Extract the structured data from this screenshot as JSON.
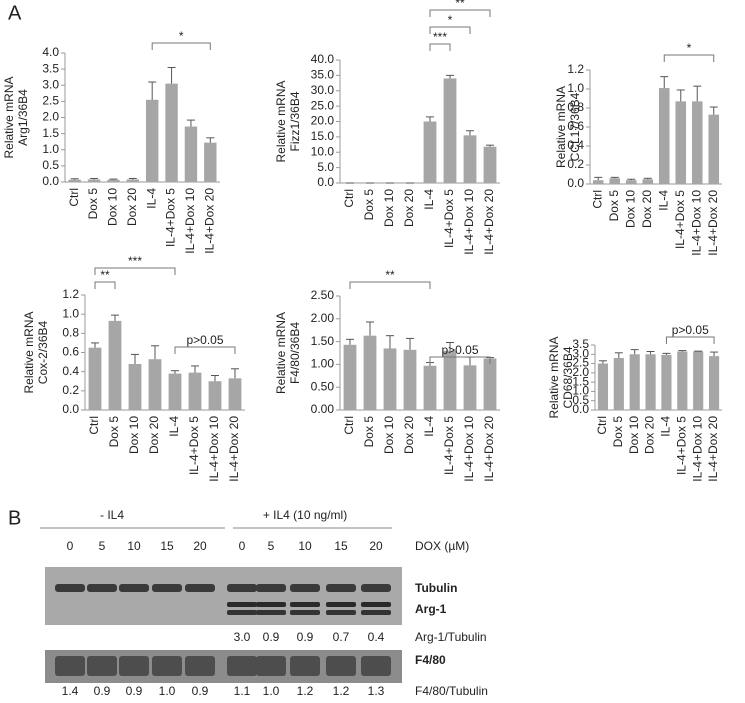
{
  "panel_label": "A",
  "chart_data": [
    {
      "type": "bar",
      "ylabel": [
        "Relative mRNA",
        "Arg1/36B4"
      ],
      "color": "#a6a6a6",
      "categories": [
        "Ctrl",
        "Dox 5",
        "Dox 10",
        "Dox 20",
        "IL-4",
        "IL-4+Dox 5",
        "IL-4+Dox 10",
        "IL-4+Dox 20"
      ],
      "values": [
        0.07,
        0.08,
        0.07,
        0.08,
        2.55,
        3.05,
        1.72,
        1.22
      ],
      "errors": [
        0.03,
        0.03,
        0.02,
        0.03,
        0.55,
        0.5,
        0.2,
        0.15
      ],
      "ylim": [
        0,
        4
      ],
      "yticks": [
        {
          "value": 0,
          "label": "0.0"
        },
        0.5,
        {
          "value": 1,
          "label": "1.0"
        },
        1.5,
        {
          "value": 2,
          "label": "2.0"
        },
        2.5,
        {
          "value": 3,
          "label": "3.0"
        },
        3.5,
        {
          "value": 4,
          "label": "4.0"
        }
      ],
      "annotations": [
        "*"
      ]
    },
    {
      "type": "bar",
      "ylabel": [
        "Relative mRNA",
        "Fizz1/36B4"
      ],
      "color": "#a6a6a6",
      "categories": [
        "Ctrl",
        "Dox 5",
        "Dox 10",
        "Dox 20",
        "IL-4",
        "IL-4+Dox 5",
        "IL-4+Dox 10",
        "IL-4+Dox 20"
      ],
      "values": [
        0,
        0,
        0,
        0,
        20,
        34,
        15.5,
        11.8
      ],
      "errors": [
        0,
        0,
        0,
        0,
        1.5,
        1,
        1.5,
        0.5
      ],
      "ylim": [
        0,
        40
      ],
      "yticks": [
        {
          "value": 0,
          "label": "0.0"
        },
        {
          "value": 5,
          "label": "5.0"
        },
        {
          "value": 10,
          "label": "10.0"
        },
        {
          "value": 15,
          "label": "15.0"
        },
        {
          "value": 20,
          "label": "20.0"
        },
        {
          "value": 25,
          "label": "25.0"
        },
        {
          "value": 30,
          "label": "30.0"
        },
        {
          "value": 35,
          "label": "35.0"
        },
        {
          "value": 40,
          "label": "40.0"
        }
      ],
      "annotations": [
        "***",
        "*",
        "**"
      ]
    },
    {
      "type": "bar",
      "ylabel": [
        "Relative mRNA",
        "CCL17/36B4"
      ],
      "color": "#a6a6a6",
      "categories": [
        "Ctrl",
        "Dox 5",
        "Dox 10",
        "Dox 20",
        "IL-4",
        "IL-4+Dox 5",
        "IL-4+Dox 10",
        "IL-4+Dox 20"
      ],
      "values": [
        0.04,
        0.06,
        0.04,
        0.05,
        1.01,
        0.87,
        0.87,
        0.73
      ],
      "errors": [
        0.03,
        0.01,
        0.01,
        0.01,
        0.12,
        0.12,
        0.16,
        0.08
      ],
      "ylim": [
        0,
        1.2
      ],
      "yticks": [
        {
          "value": 0,
          "label": "0.0"
        },
        0.2,
        0.4,
        0.6,
        0.8,
        {
          "value": 1,
          "label": "1.0"
        },
        1.2
      ],
      "annotations": [
        "*"
      ]
    },
    {
      "type": "bar",
      "ylabel": [
        "Relative mRNA",
        "Cox-2/36B4"
      ],
      "color": "#a6a6a6",
      "categories": [
        "Ctrl",
        "Dox 5",
        "Dox 10",
        "Dox 20",
        "IL-4",
        "IL-4+Dox 5",
        "IL-4+Dox 10",
        "IL-4+Dox 20"
      ],
      "values": [
        0.65,
        0.93,
        0.48,
        0.53,
        0.38,
        0.39,
        0.3,
        0.33
      ],
      "errors": [
        0.05,
        0.06,
        0.1,
        0.14,
        0.03,
        0.07,
        0.06,
        0.1
      ],
      "ylim": [
        0,
        1.2
      ],
      "yticks": [
        {
          "value": 0,
          "label": "0.0"
        },
        0.2,
        0.4,
        0.6,
        0.8,
        {
          "value": 1,
          "label": "1.0"
        },
        1.2
      ],
      "annotations": [
        "**",
        "***",
        "p>0.05"
      ]
    },
    {
      "type": "bar",
      "ylabel": [
        "Relative mRNA",
        "F4/80/36B4"
      ],
      "color": "#a6a6a6",
      "categories": [
        "Ctrl",
        "Dox 5",
        "Dox 10",
        "Dox 20",
        "IL-4",
        "IL-4+Dox 5",
        "IL-4+Dox 10",
        "IL-4+Dox 20"
      ],
      "values": [
        1.43,
        1.63,
        1.35,
        1.32,
        0.97,
        1.3,
        0.98,
        1.13
      ],
      "errors": [
        0.12,
        0.3,
        0.28,
        0.25,
        0.07,
        0.18,
        0.18,
        0.02
      ],
      "ylim": [
        0,
        2.5
      ],
      "yticks": [
        {
          "value": 0,
          "label": "0.00"
        },
        {
          "value": 0.5,
          "label": "0.50"
        },
        {
          "value": 1,
          "label": "1.00"
        },
        {
          "value": 1.5,
          "label": "1.50"
        },
        {
          "value": 2,
          "label": "2.00"
        },
        {
          "value": 2.5,
          "label": "2.50"
        }
      ],
      "annotations": [
        "**",
        "p>0.05"
      ]
    },
    {
      "type": "bar",
      "ylabel": [
        "Relative mRNA",
        "CD68/36B4"
      ],
      "color": "#a6a6a6",
      "categories": [
        "Ctrl",
        "Dox 5",
        "Dox 10",
        "Dox 20",
        "IL-4",
        "IL-4+Dox 5",
        "IL-4+Dox 10",
        "IL-4+Dox 20"
      ],
      "values": [
        2.5,
        2.8,
        3.0,
        3.0,
        2.97,
        3.15,
        3.15,
        2.9
      ],
      "errors": [
        0.15,
        0.28,
        0.25,
        0.15,
        0.08,
        0.05,
        0.02,
        0.22
      ],
      "ylim": [
        0,
        3.5
      ],
      "yticks": [
        {
          "value": 0,
          "label": "0.0"
        },
        0.5,
        {
          "value": 1,
          "label": "1.0"
        },
        1.5,
        {
          "value": 2,
          "label": "2.0"
        },
        2.5,
        {
          "value": 3,
          "label": "3.0"
        },
        3.5
      ],
      "annotations": [
        "p>0.05"
      ]
    }
  ],
  "blot": {
    "label": "B",
    "groups": [
      "- IL4",
      "+ IL4 (10 ng/ml)"
    ],
    "doses": [
      "0",
      "5",
      "10",
      "15",
      "20",
      "0",
      "5",
      "10",
      "15",
      "20"
    ],
    "dose_label": "DOX (µM)",
    "bands": [
      "Tubulin",
      "Arg-1",
      "F4/80"
    ],
    "arg1_ratio_label": "Arg-1/Tubulin",
    "arg1_ratios": [
      "3.0",
      "0.9",
      "0.9",
      "0.7",
      "0.4"
    ],
    "f480_ratio_label": "F4/80/Tubulin",
    "f480_ratios": [
      "1.4",
      "0.9",
      "0.9",
      "1.0",
      "0.9",
      "1.1",
      "1.0",
      "1.2",
      "1.2",
      "1.3"
    ]
  }
}
